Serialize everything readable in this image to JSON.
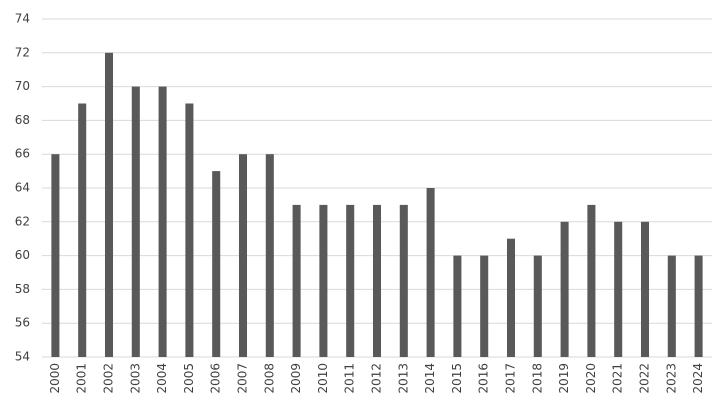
{
  "chart_data": {
    "type": "bar",
    "categories": [
      "2000",
      "2001",
      "2002",
      "2003",
      "2004",
      "2005",
      "2006",
      "2007",
      "2008",
      "2009",
      "2010",
      "2011",
      "2012",
      "2013",
      "2014",
      "2015",
      "2016",
      "2017",
      "2018",
      "2019",
      "2020",
      "2021",
      "2022",
      "2023",
      "2024"
    ],
    "values": [
      66,
      69,
      72,
      70,
      70,
      69,
      65,
      66,
      66,
      63,
      63,
      63,
      63,
      63,
      64,
      60,
      60,
      61,
      60,
      62,
      63,
      62,
      62,
      60,
      60
    ],
    "color": "#595959",
    "ylim": [
      54,
      74
    ],
    "yticks": [
      54,
      56,
      58,
      60,
      62,
      64,
      66,
      68,
      70,
      72,
      74
    ],
    "grid": true
  }
}
